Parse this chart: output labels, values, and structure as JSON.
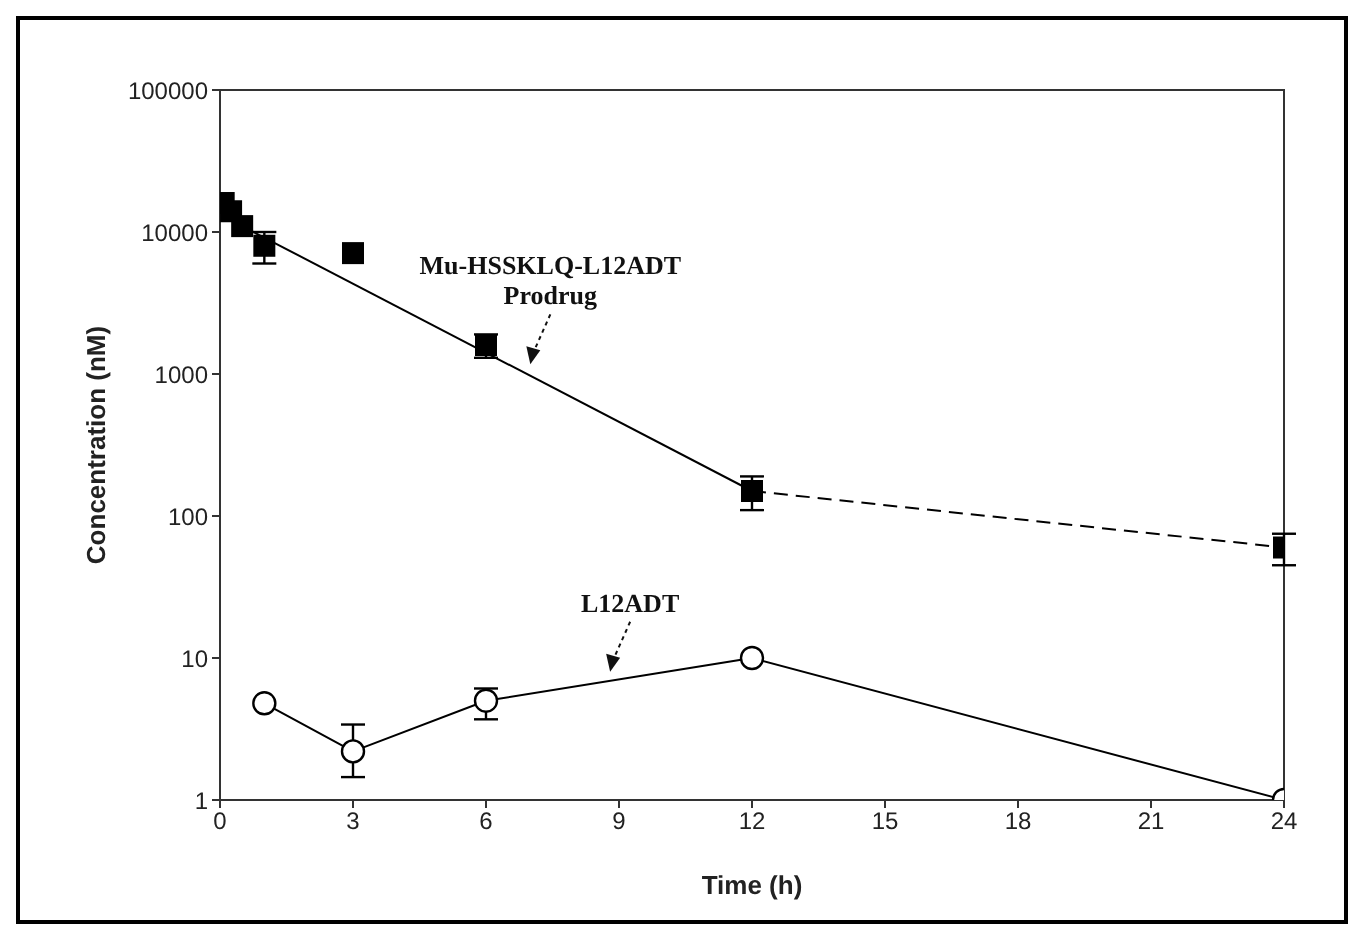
{
  "chart_data": {
    "type": "line",
    "xlabel": "Time (h)",
    "ylabel": "Concentration (nM)",
    "xlim": [
      0,
      24
    ],
    "xticks": [
      0,
      3,
      6,
      9,
      12,
      15,
      18,
      21,
      24
    ],
    "ylim": [
      1,
      100000
    ],
    "yticks": [
      1,
      10,
      100,
      1000,
      10000,
      100000
    ],
    "log": true,
    "series": [
      {
        "type": "scatter",
        "color": "#000000",
        "marker": "square",
        "x": [
          0.083,
          0.25,
          0.5,
          1,
          3,
          6,
          12,
          24
        ],
        "values": [
          16000,
          14000,
          11000,
          8000,
          7100,
          1600,
          150,
          60
        ],
        "errors": [
          null,
          null,
          null,
          2000,
          null,
          300,
          40,
          15
        ]
      },
      {
        "color": "#000000",
        "marker": "none",
        "line_style": "solid",
        "x": [
          0.5,
          12
        ],
        "values": [
          11000,
          150
        ]
      },
      {
        "color": "#000000",
        "marker": "none",
        "line_style": "dashed",
        "x": [
          12,
          24
        ],
        "values": [
          150,
          60
        ]
      },
      {
        "color": "#000000",
        "marker": "circle",
        "line_style": "solid",
        "x": [
          1,
          3,
          6,
          12,
          24
        ],
        "values": [
          4.8,
          2.2,
          5,
          10,
          1
        ],
        "errors": [
          null,
          [
            1.45,
            3.4
          ],
          [
            3.7,
            6.1
          ],
          null,
          null
        ]
      }
    ],
    "annotations": [
      {
        "text": "Mu-HSSKLQ-L12ADT\nProdrug",
        "x": 7,
        "y": 1170
      },
      {
        "text": "L12ADT",
        "x": 8.8,
        "y": 8
      }
    ]
  }
}
